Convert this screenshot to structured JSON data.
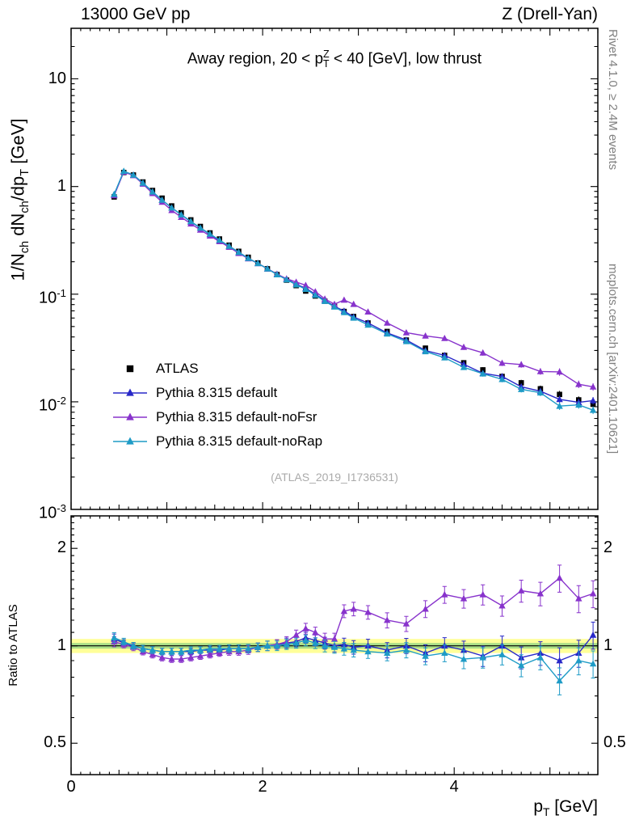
{
  "header": {
    "left": "13000 GeV pp",
    "right": "Z (Drell-Yan)"
  },
  "side_notes": {
    "top": "Rivet 4.1.0, ≥ 2.4M events",
    "bottom": "mcplots.cern.ch [arXiv:2401.10621]"
  },
  "watermark": "(ATLAS_2019_I1736531)",
  "chart_data": {
    "type": "line",
    "title": "Away region, 20 < p^{Z}_{T} < 40 [GeV], low thrust",
    "ylabel": "1/N_{ch} dN_{ch}/dp_{T} [GeV]",
    "ratio_ylabel": "Ratio to ATLAS",
    "xlabel": "p_{T} [GeV]",
    "xlim": [
      0,
      5.5
    ],
    "ylim_log": [
      0.001,
      29.5
    ],
    "ratio_ylim_log": [
      0.4,
      2.52
    ],
    "legend_position": "inside-left",
    "grid": false,
    "x_tick_labels": [
      {
        "v": 0,
        "label": "0"
      },
      {
        "v": 2,
        "label": "2"
      },
      {
        "v": 4,
        "label": "4"
      }
    ],
    "y_tick_labels": [
      {
        "v": 10,
        "label": "10"
      },
      {
        "v": 1,
        "label": "1"
      },
      {
        "v": 0.1,
        "label": "10^{-1}"
      },
      {
        "v": 0.01,
        "label": "10^{-2}"
      },
      {
        "v": 0.001,
        "label": "10^{-3}"
      }
    ],
    "ratio_tick_labels": [
      {
        "v": 2,
        "label": "2"
      },
      {
        "v": 1,
        "label": "1"
      },
      {
        "v": 0.5,
        "label": "0.5"
      }
    ],
    "x": [
      0.45,
      0.55,
      0.65,
      0.75,
      0.85,
      0.95,
      1.05,
      1.15,
      1.25,
      1.35,
      1.45,
      1.55,
      1.65,
      1.75,
      1.85,
      1.95,
      2.05,
      2.15,
      2.25,
      2.35,
      2.45,
      2.55,
      2.65,
      2.75,
      2.85,
      2.95,
      3.1,
      3.3,
      3.5,
      3.7,
      3.9,
      4.1,
      4.3,
      4.5,
      4.7,
      4.9,
      5.1,
      5.3,
      5.45
    ],
    "err_rel": [
      0.03,
      0.02,
      0.02,
      0.02,
      0.02,
      0.02,
      0.02,
      0.02,
      0.02,
      0.02,
      0.02,
      0.02,
      0.022,
      0.022,
      0.025,
      0.025,
      0.028,
      0.028,
      0.03,
      0.03,
      0.032,
      0.032,
      0.035,
      0.035,
      0.038,
      0.04,
      0.04,
      0.045,
      0.045,
      0.05,
      0.05,
      0.055,
      0.06,
      0.06,
      0.065,
      0.07,
      0.08,
      0.08,
      0.08
    ],
    "reference": {
      "id": "atlas",
      "name": "ATLAS",
      "marker": "square",
      "color": "#000000",
      "values": [
        0.8,
        1.35,
        1.28,
        1.1,
        0.92,
        0.78,
        0.66,
        0.57,
        0.49,
        0.425,
        0.37,
        0.325,
        0.285,
        0.25,
        0.22,
        0.195,
        0.172,
        0.152,
        0.135,
        0.12,
        0.107,
        0.096,
        0.086,
        0.077,
        0.069,
        0.062,
        0.054,
        0.045,
        0.0375,
        0.0315,
        0.027,
        0.023,
        0.0198,
        0.0172,
        0.015,
        0.0132,
        0.0117,
        0.0104,
        0.0095
      ]
    },
    "series": [
      {
        "id": "pythia-default",
        "name": "Pythia 8.315 default",
        "marker": "triangle",
        "color": "#2828c8",
        "ratio": [
          1.05,
          1.02,
          1.0,
          0.98,
          0.97,
          0.96,
          0.96,
          0.96,
          0.96,
          0.97,
          0.97,
          0.97,
          0.98,
          0.98,
          0.98,
          0.99,
          1.0,
          1.01,
          1.02,
          1.03,
          1.06,
          1.04,
          1.02,
          1.0,
          1.01,
          0.99,
          1.0,
          0.97,
          1.0,
          0.95,
          1.0,
          0.97,
          0.93,
          1.0,
          0.92,
          0.95,
          0.9,
          0.95,
          1.08
        ]
      },
      {
        "id": "pythia-default-nofsr",
        "name": "Pythia 8.315 default-noFsr",
        "marker": "triangle",
        "color": "#8833cc",
        "ratio": [
          1.03,
          1.01,
          0.99,
          0.96,
          0.94,
          0.92,
          0.91,
          0.91,
          0.92,
          0.93,
          0.94,
          0.95,
          0.96,
          0.96,
          0.97,
          0.99,
          1.0,
          1.01,
          1.03,
          1.08,
          1.13,
          1.1,
          1.05,
          1.05,
          1.28,
          1.3,
          1.27,
          1.2,
          1.17,
          1.3,
          1.44,
          1.4,
          1.44,
          1.33,
          1.48,
          1.45,
          1.62,
          1.4,
          1.45
        ]
      },
      {
        "id": "pythia-default-norap",
        "name": "Pythia 8.315 default-noRap",
        "marker": "triangle",
        "color": "#1e9bc6",
        "ratio": [
          1.06,
          1.03,
          1.0,
          0.98,
          0.97,
          0.96,
          0.96,
          0.96,
          0.97,
          0.97,
          0.98,
          0.98,
          0.98,
          0.98,
          0.98,
          0.99,
          1.0,
          1.0,
          1.01,
          1.02,
          1.04,
          1.02,
          1.0,
          0.99,
          0.98,
          0.97,
          0.96,
          0.95,
          0.97,
          0.93,
          0.95,
          0.91,
          0.92,
          0.94,
          0.87,
          0.92,
          0.78,
          0.9,
          0.88
        ]
      }
    ],
    "bands": {
      "yellow": {
        "lo": 0.95,
        "hi": 1.05,
        "color": "#ffff99"
      },
      "green": {
        "lo": 0.98,
        "hi": 1.02,
        "color": "#aade87"
      }
    }
  }
}
